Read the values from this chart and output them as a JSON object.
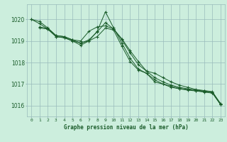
{
  "background_color": "#cceedd",
  "grid_color": "#99bbbb",
  "line_color": "#1a5c2a",
  "title": "Graphe pression niveau de la mer (hPa)",
  "ylabel_ticks": [
    1016,
    1017,
    1018,
    1019,
    1020
  ],
  "xlim": [
    -0.5,
    23.5
  ],
  "ylim": [
    1015.5,
    1020.7
  ],
  "series": [
    {
      "x": [
        0,
        1,
        2,
        3,
        4,
        5,
        6,
        7,
        8,
        9,
        10,
        11,
        12,
        13,
        14,
        15,
        16,
        17,
        18,
        19,
        20,
        21,
        22,
        23
      ],
      "y": [
        1020.0,
        1019.9,
        1019.6,
        1019.25,
        1019.2,
        1019.05,
        1019.0,
        1019.45,
        1019.65,
        1019.7,
        1019.55,
        1019.1,
        1018.55,
        1018.05,
        1017.6,
        1017.5,
        1017.3,
        1017.1,
        1016.95,
        1016.85,
        1016.75,
        1016.7,
        1016.65,
        1016.05
      ]
    },
    {
      "x": [
        0,
        1,
        2,
        3,
        4,
        5,
        6,
        7,
        8,
        9,
        10,
        11,
        12,
        13,
        14,
        15,
        16,
        17,
        18,
        19,
        20,
        21,
        22,
        23
      ],
      "y": [
        1020.0,
        1019.8,
        1019.55,
        1019.2,
        1019.15,
        1019.0,
        1018.9,
        1019.0,
        1019.2,
        1019.6,
        1019.5,
        1018.75,
        1018.05,
        1017.65,
        1017.5,
        1017.1,
        1017.0,
        1016.9,
        1016.8,
        1016.75,
        1016.7,
        1016.65,
        1016.6,
        1016.05
      ]
    },
    {
      "x": [
        1,
        2,
        3,
        4,
        5,
        6,
        7,
        8,
        9,
        10,
        11,
        12,
        13,
        14,
        15,
        16,
        17,
        18,
        19,
        20,
        21,
        22,
        23
      ],
      "y": [
        1019.6,
        1019.55,
        1019.2,
        1019.15,
        1019.0,
        1018.8,
        1019.0,
        1019.45,
        1020.35,
        1019.6,
        1018.9,
        1018.2,
        1017.7,
        1017.5,
        1017.2,
        1017.0,
        1016.85,
        1016.78,
        1016.72,
        1016.68,
        1016.63,
        1016.58,
        1016.05
      ]
    },
    {
      "x": [
        1,
        2,
        3,
        4,
        5,
        6,
        7,
        8,
        9,
        10,
        11,
        12,
        13,
        14,
        15,
        16,
        17,
        18,
        19,
        20,
        21,
        22,
        23
      ],
      "y": [
        1019.65,
        1019.58,
        1019.25,
        1019.2,
        1019.05,
        1018.9,
        1019.05,
        1019.42,
        1019.85,
        1019.55,
        1019.05,
        1018.45,
        1017.9,
        1017.6,
        1017.3,
        1017.1,
        1016.95,
        1016.85,
        1016.78,
        1016.72,
        1016.68,
        1016.63,
        1016.1
      ]
    }
  ]
}
